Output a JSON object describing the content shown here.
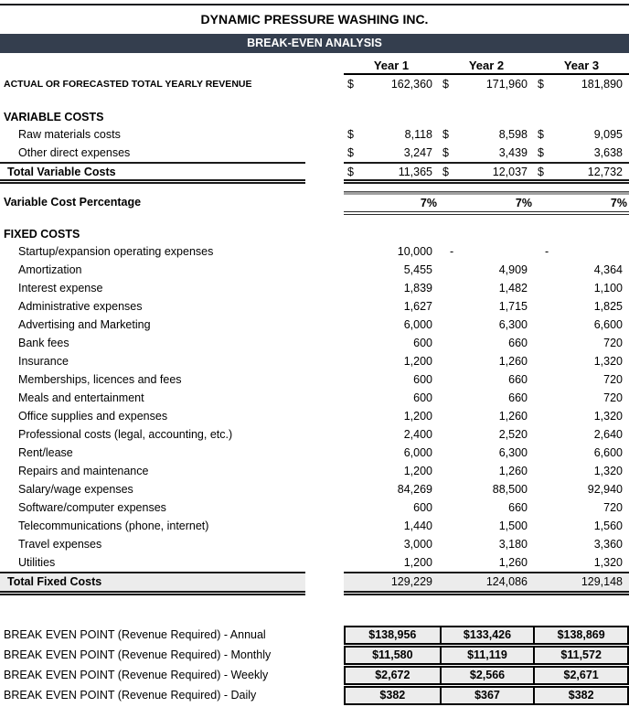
{
  "page": {
    "company": "DYNAMIC PRESSURE WASHING INC.",
    "report_title": "BREAK-EVEN ANALYSIS",
    "accent_color": "#343e4e",
    "total_row_bg": "#ececec"
  },
  "misc": {
    "currency_symbol": "$"
  },
  "columns": [
    "Year 1",
    "Year 2",
    "Year 3"
  ],
  "revenue": {
    "label": "ACTUAL OR FORECASTED TOTAL YEARLY REVENUE",
    "values": [
      "162,360",
      "171,960",
      "181,890"
    ]
  },
  "variable_costs": {
    "title": "VARIABLE COSTS",
    "rows": [
      {
        "label": "Raw materials costs",
        "values": [
          "8,118",
          "8,598",
          "9,095"
        ]
      },
      {
        "label": "Other direct expenses",
        "values": [
          "3,247",
          "3,439",
          "3,638"
        ]
      }
    ],
    "total": {
      "label": "Total Variable Costs",
      "values": [
        "11,365",
        "12,037",
        "12,732"
      ]
    },
    "percentage": {
      "label": "Variable Cost Percentage",
      "values": [
        "7%",
        "7%",
        "7%"
      ]
    }
  },
  "fixed_costs": {
    "title": "FIXED COSTS",
    "rows": [
      {
        "label": "Startup/expansion operating expenses",
        "values": [
          "10,000",
          "-",
          "-"
        ]
      },
      {
        "label": "Amortization",
        "values": [
          "5,455",
          "4,909",
          "4,364"
        ]
      },
      {
        "label": "Interest expense",
        "values": [
          "1,839",
          "1,482",
          "1,100"
        ]
      },
      {
        "label": "Administrative expenses",
        "values": [
          "1,627",
          "1,715",
          "1,825"
        ]
      },
      {
        "label": "Advertising and Marketing",
        "values": [
          "6,000",
          "6,300",
          "6,600"
        ]
      },
      {
        "label": "Bank fees",
        "values": [
          "600",
          "660",
          "720"
        ]
      },
      {
        "label": "Insurance",
        "values": [
          "1,200",
          "1,260",
          "1,320"
        ]
      },
      {
        "label": "Memberships, licences and fees",
        "values": [
          "600",
          "660",
          "720"
        ]
      },
      {
        "label": "Meals and entertainment",
        "values": [
          "600",
          "660",
          "720"
        ]
      },
      {
        "label": "Office supplies and expenses",
        "values": [
          "1,200",
          "1,260",
          "1,320"
        ]
      },
      {
        "label": "Professional costs (legal, accounting, etc.)",
        "values": [
          "2,400",
          "2,520",
          "2,640"
        ]
      },
      {
        "label": "Rent/lease",
        "values": [
          "6,000",
          "6,300",
          "6,600"
        ]
      },
      {
        "label": "Repairs and maintenance",
        "values": [
          "1,200",
          "1,260",
          "1,320"
        ]
      },
      {
        "label": "Salary/wage expenses",
        "values": [
          "84,269",
          "88,500",
          "92,940"
        ]
      },
      {
        "label": "Software/computer expenses",
        "values": [
          "600",
          "660",
          "720"
        ]
      },
      {
        "label": "Telecommunications (phone, internet)",
        "values": [
          "1,440",
          "1,500",
          "1,560"
        ]
      },
      {
        "label": "Travel expenses",
        "values": [
          "3,000",
          "3,180",
          "3,360"
        ]
      },
      {
        "label": "Utilities",
        "values": [
          "1,200",
          "1,260",
          "1,320"
        ]
      }
    ],
    "total": {
      "label": "Total Fixed Costs",
      "values": [
        "129,229",
        "124,086",
        "129,148"
      ]
    }
  },
  "break_even": {
    "rows": [
      {
        "label": "BREAK EVEN POINT (Revenue Required) - Annual",
        "values": [
          "$138,956",
          "$133,426",
          "$138,869"
        ]
      },
      {
        "label": "BREAK EVEN POINT (Revenue Required) - Monthly",
        "values": [
          "$11,580",
          "$11,119",
          "$11,572"
        ]
      },
      {
        "label": "BREAK EVEN POINT (Revenue Required) - Weekly",
        "values": [
          "$2,672",
          "$2,566",
          "$2,671"
        ]
      },
      {
        "label": "BREAK EVEN POINT (Revenue Required) - Daily",
        "values": [
          "$382",
          "$367",
          "$382"
        ]
      }
    ]
  }
}
